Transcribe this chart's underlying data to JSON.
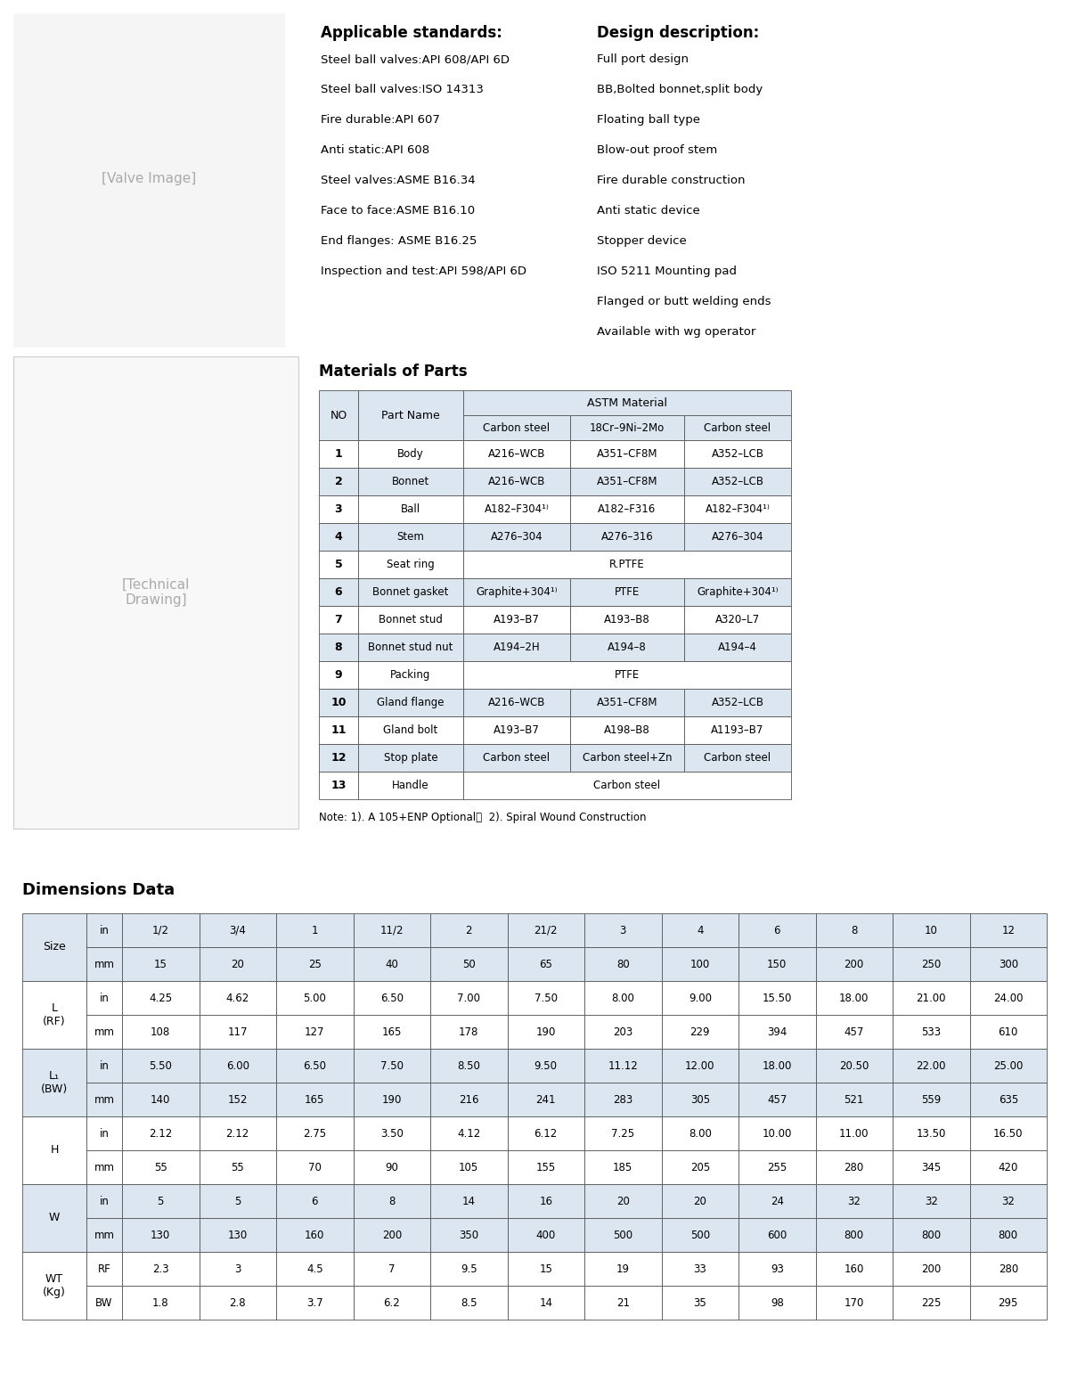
{
  "applicable_standards_title": "Applicable standards:",
  "applicable_standards": [
    "Steel ball valves:API 608/API 6D",
    "Steel ball valves:ISO 14313",
    "Fire durable:API 607",
    "Anti static:API 608",
    "Steel valves:ASME B16.34",
    "Face to face:ASME B16.10",
    "End flanges: ASME B16.25",
    "Inspection and test:API 598/API 6D"
  ],
  "design_description_title": "Design description:",
  "design_description": [
    "Full port design",
    "BB,Bolted bonnet,split body",
    "Floating ball type",
    "Blow-out proof stem",
    "Fire durable construction",
    "Anti static device",
    "Stopper device",
    "ISO 5211 Mounting pad",
    "Flanged or butt welding ends",
    "Available with wg operator"
  ],
  "materials_title": "Materials of Parts",
  "materials_rows": [
    [
      "1",
      "Body",
      "A216–WCB",
      "A351–CF8M",
      "A352–LCB"
    ],
    [
      "2",
      "Bonnet",
      "A216–WCB",
      "A351–CF8M",
      "A352–LCB"
    ],
    [
      "3",
      "Ball",
      "A182–F304¹⁾",
      "A182–F316",
      "A182–F304¹⁾"
    ],
    [
      "4",
      "Stem",
      "A276–304",
      "A276–316",
      "A276–304"
    ],
    [
      "5",
      "Seat ring",
      "R.PTFE",
      "",
      ""
    ],
    [
      "6",
      "Bonnet gasket",
      "Graphite+304¹⁾",
      "PTFE",
      "Graphite+304¹⁾"
    ],
    [
      "7",
      "Bonnet stud",
      "A193–B7",
      "A193–B8",
      "A320–L7"
    ],
    [
      "8",
      "Bonnet stud nut",
      "A194–2H",
      "A194–8",
      "A194–4"
    ],
    [
      "9",
      "Packing",
      "PTFE",
      "",
      ""
    ],
    [
      "10",
      "Gland flange",
      "A216–WCB",
      "A351–CF8M",
      "A352–LCB"
    ],
    [
      "11",
      "Gland bolt",
      "A193–B7",
      "A198–B8",
      "A1193–B7"
    ],
    [
      "12",
      "Stop plate",
      "Carbon steel",
      "Carbon steel+Zn",
      "Carbon steel"
    ],
    [
      "13",
      "Handle",
      "Carbon steel",
      "",
      ""
    ]
  ],
  "note": "Note: 1). A 105+ENP Optional；  2). Spiral Wound Construction",
  "dimensions_title": "Dimensions Data",
  "dim_sizes_in": [
    "1/2",
    "3/4",
    "1",
    "11/2",
    "2",
    "21/2",
    "3",
    "4",
    "6",
    "8",
    "10",
    "12"
  ],
  "dim_sizes_mm": [
    "15",
    "20",
    "25",
    "40",
    "50",
    "65",
    "80",
    "100",
    "150",
    "200",
    "250",
    "300"
  ],
  "dim_L_RF_in": [
    "4.25",
    "4.62",
    "5.00",
    "6.50",
    "7.00",
    "7.50",
    "8.00",
    "9.00",
    "15.50",
    "18.00",
    "21.00",
    "24.00"
  ],
  "dim_L_RF_mm": [
    "108",
    "117",
    "127",
    "165",
    "178",
    "190",
    "203",
    "229",
    "394",
    "457",
    "533",
    "610"
  ],
  "dim_L1_BW_in": [
    "5.50",
    "6.00",
    "6.50",
    "7.50",
    "8.50",
    "9.50",
    "11.12",
    "12.00",
    "18.00",
    "20.50",
    "22.00",
    "25.00"
  ],
  "dim_L1_BW_mm": [
    "140",
    "152",
    "165",
    "190",
    "216",
    "241",
    "283",
    "305",
    "457",
    "521",
    "559",
    "635"
  ],
  "dim_H_in": [
    "2.12",
    "2.12",
    "2.75",
    "3.50",
    "4.12",
    "6.12",
    "7.25",
    "8.00",
    "10.00",
    "11.00",
    "13.50",
    "16.50"
  ],
  "dim_H_mm": [
    "55",
    "55",
    "70",
    "90",
    "105",
    "155",
    "185",
    "205",
    "255",
    "280",
    "345",
    "420"
  ],
  "dim_W_in": [
    "5",
    "5",
    "6",
    "8",
    "14",
    "16",
    "20",
    "20",
    "24",
    "32",
    "32",
    "32"
  ],
  "dim_W_mm": [
    "130",
    "130",
    "160",
    "200",
    "350",
    "400",
    "500",
    "500",
    "600",
    "800",
    "800",
    "800"
  ],
  "dim_WT_RF": [
    "2.3",
    "3",
    "4.5",
    "7",
    "9.5",
    "15",
    "19",
    "33",
    "93",
    "160",
    "200",
    "280"
  ],
  "dim_WT_BW": [
    "1.8",
    "2.8",
    "3.7",
    "6.2",
    "8.5",
    "14",
    "21",
    "35",
    "98",
    "170",
    "225",
    "295"
  ],
  "header_bg": "#dce6f1",
  "white_bg": "#ffffff"
}
